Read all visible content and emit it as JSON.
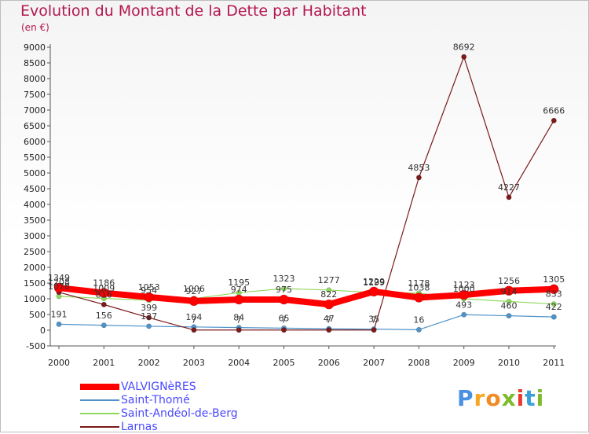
{
  "chart_data": {
    "type": "line",
    "title": "Evolution du Montant de la Dette par Habitant",
    "subtitle": "(en €)",
    "categories": [
      "2000",
      "2001",
      "2002",
      "2003",
      "2004",
      "2005",
      "2006",
      "2007",
      "2008",
      "2009",
      "2010",
      "2011"
    ],
    "ylim": [
      -500,
      9000
    ],
    "yticks": [
      -500,
      0,
      500,
      1000,
      1500,
      2000,
      2500,
      3000,
      3500,
      4000,
      4500,
      5000,
      5500,
      6000,
      6500,
      7000,
      7500,
      8000,
      8500,
      9000
    ],
    "grid": false,
    "legend_position": "bottom-left",
    "series": [
      {
        "name": "VALVIGNèRES",
        "color": "#ff0000",
        "values": [
          1349,
          1186,
          1053,
          927,
          974,
          975,
          822,
          1229,
          1038,
          1123,
          1256,
          1305
        ],
        "labels": [
          "1349",
          "1186",
          "1053",
          "927",
          "974",
          "975",
          "822",
          "1229",
          "1038",
          "1123",
          "1256",
          "1305"
        ]
      },
      {
        "name": "Saint-Thomé",
        "color": "#4f93c9",
        "values": [
          191,
          156,
          127,
          104,
          84,
          65,
          47,
          35,
          16,
          493,
          460,
          422
        ],
        "labels": [
          "191",
          "156",
          "127",
          "104",
          "84",
          "65",
          "47",
          "35",
          "16",
          "493",
          "460",
          "422"
        ]
      },
      {
        "name": "Saint-Andéol-de-Berg",
        "color": "#90d95c",
        "values": [
          1078,
          1009,
          954,
          1006,
          1195,
          1323,
          1277,
          1199,
          1178,
          1000,
          914,
          833
        ],
        "labels": [
          "1078",
          "1009",
          "954",
          "1006",
          "1195",
          "1323",
          "1277",
          "1199",
          "1178",
          "1000",
          "914",
          "833"
        ]
      },
      {
        "name": "Larnas",
        "color": "#7b1a1a",
        "values": [
          1208,
          816,
          399,
          7,
          7,
          7,
          7,
          7,
          4853,
          8692,
          4227,
          6666
        ],
        "labels": [
          "1208",
          "816",
          "399",
          "7",
          "7",
          "7",
          "7",
          "7",
          "4853",
          "8692",
          "4227",
          "6666"
        ]
      }
    ]
  },
  "branding": {
    "logo_letters": [
      "P",
      "r",
      "o",
      "x",
      "i",
      "t",
      "i"
    ],
    "logo_colors": [
      "#4a90e2",
      "#f5a623",
      "#f08a24",
      "#7dbb2c",
      "#e8392f",
      "#3aa0d8",
      "#7dbb2c"
    ]
  }
}
